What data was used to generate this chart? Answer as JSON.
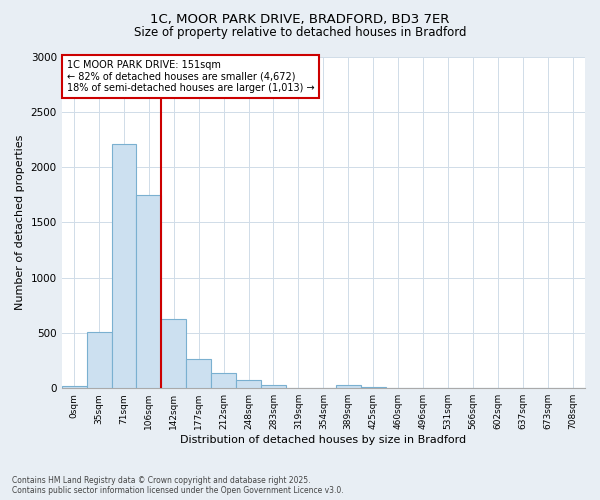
{
  "title_line1": "1C, MOOR PARK DRIVE, BRADFORD, BD3 7ER",
  "title_line2": "Size of property relative to detached houses in Bradford",
  "xlabel": "Distribution of detached houses by size in Bradford",
  "ylabel": "Number of detached properties",
  "categories": [
    "0sqm",
    "35sqm",
    "71sqm",
    "106sqm",
    "142sqm",
    "177sqm",
    "212sqm",
    "248sqm",
    "283sqm",
    "319sqm",
    "354sqm",
    "389sqm",
    "425sqm",
    "460sqm",
    "496sqm",
    "531sqm",
    "566sqm",
    "602sqm",
    "637sqm",
    "673sqm",
    "708sqm"
  ],
  "values": [
    20,
    510,
    2210,
    1750,
    630,
    260,
    140,
    75,
    30,
    0,
    0,
    25,
    15,
    0,
    0,
    0,
    0,
    0,
    0,
    0,
    0
  ],
  "bar_color": "#cce0f0",
  "bar_edge_color": "#7ab0d0",
  "vline_color": "#cc0000",
  "vline_x_index": 4,
  "annotation_line1": "1C MOOR PARK DRIVE: 151sqm",
  "annotation_line2": "← 82% of detached houses are smaller (4,672)",
  "annotation_line3": "18% of semi-detached houses are larger (1,013) →",
  "annotation_box_facecolor": "#ffffff",
  "annotation_box_edgecolor": "#cc0000",
  "ylim": [
    0,
    3000
  ],
  "yticks": [
    0,
    500,
    1000,
    1500,
    2000,
    2500,
    3000
  ],
  "grid_color": "#d0dce8",
  "plot_bg_color": "#ffffff",
  "fig_bg_color": "#e8eef4",
  "footer_line1": "Contains HM Land Registry data © Crown copyright and database right 2025.",
  "footer_line2": "Contains public sector information licensed under the Open Government Licence v3.0."
}
